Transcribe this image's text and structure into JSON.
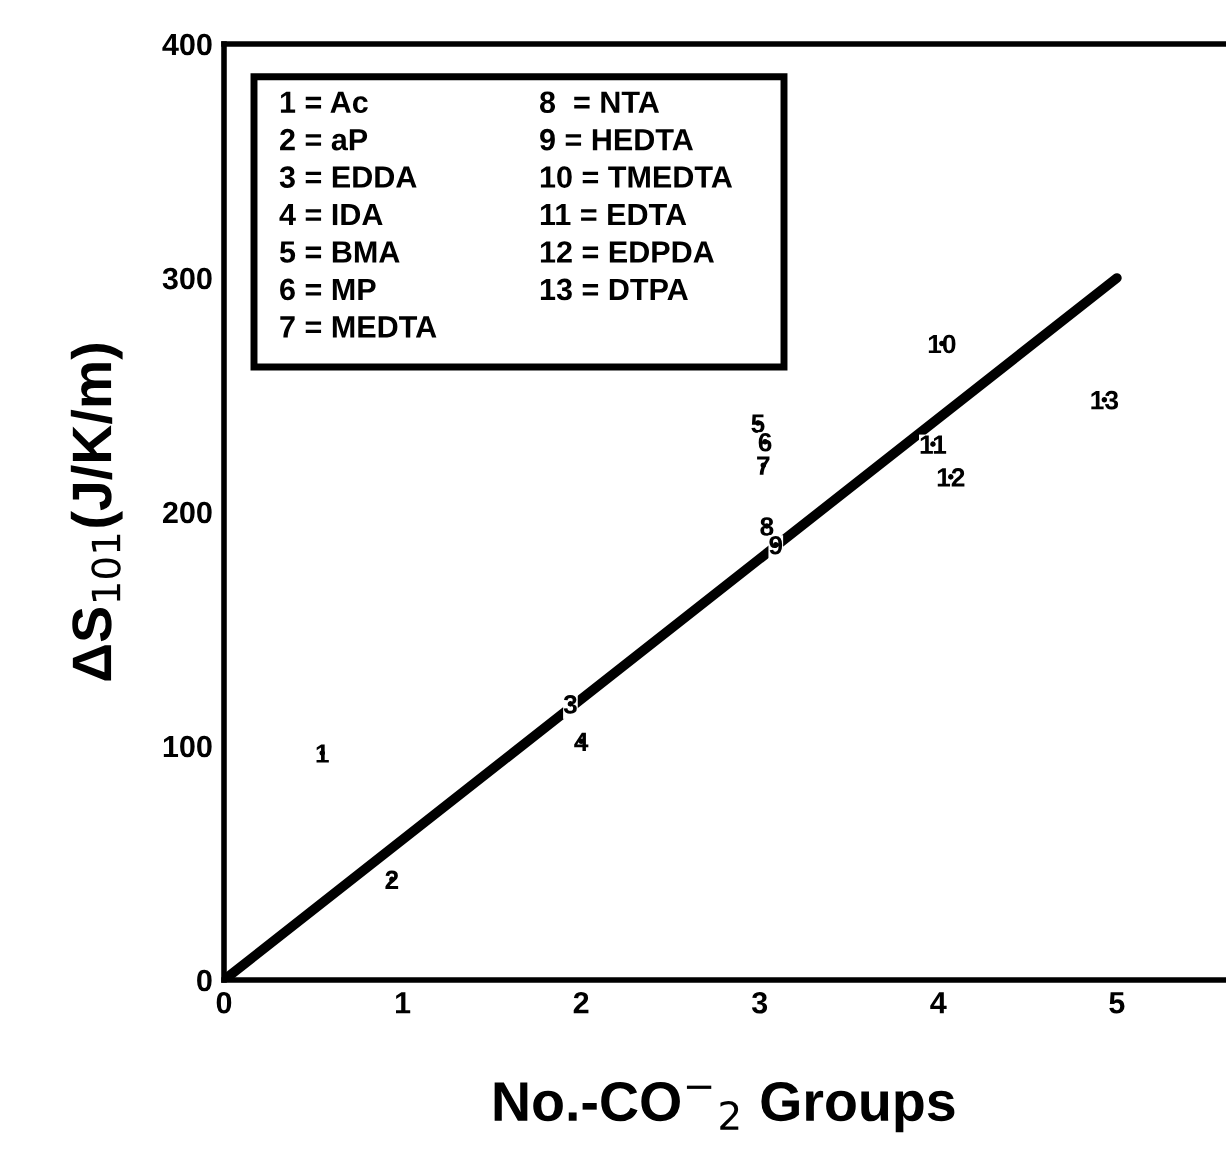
{
  "chart_data": {
    "type": "scatter",
    "xlabel": "No.-CO$^{−}$$_{2}$ Groups",
    "ylabel": "ΔS$_{101}$(J/K/m)",
    "xlim": [
      0,
      5.6
    ],
    "ylim": [
      0,
      400
    ],
    "xticks": [
      0,
      1,
      2,
      3,
      4,
      5
    ],
    "yticks": [
      0,
      100,
      200,
      300,
      400
    ],
    "grid": false,
    "legend": false,
    "marker": "circle",
    "series": [
      {
        "name": "1",
        "color": "#000000",
        "x": [
          0.55
        ],
        "values": [
          97
        ]
      },
      {
        "name": "2",
        "color": "#000000",
        "x": [
          0.94
        ],
        "values": [
          43
        ]
      },
      {
        "name": "3",
        "color": "#000000",
        "x": [
          1.94
        ],
        "values": [
          118
        ]
      },
      {
        "name": "4",
        "color": "#000000",
        "x": [
          2.0
        ],
        "values": [
          102
        ]
      },
      {
        "name": "5",
        "color": "#000000",
        "x": [
          2.99
        ],
        "values": [
          238
        ]
      },
      {
        "name": "6",
        "color": "#000000",
        "x": [
          3.03
        ],
        "values": [
          230
        ]
      },
      {
        "name": "7",
        "color": "#000000",
        "x": [
          3.02
        ],
        "values": [
          220
        ]
      },
      {
        "name": "8",
        "color": "#000000",
        "x": [
          3.04
        ],
        "values": [
          194
        ]
      },
      {
        "name": "9",
        "color": "#000000",
        "x": [
          3.09
        ],
        "values": [
          186
        ]
      },
      {
        "name": "10",
        "color": "#000000",
        "x": [
          4.02
        ],
        "values": [
          272
        ]
      },
      {
        "name": "11",
        "color": "#000000",
        "x": [
          3.97
        ],
        "values": [
          229
        ]
      },
      {
        "name": "12",
        "color": "#000000",
        "x": [
          4.07
        ],
        "values": [
          215
        ]
      },
      {
        "name": "13",
        "color": "#000000",
        "x": [
          4.93
        ],
        "values": [
          248
        ]
      },
      {
        "type": "line",
        "color": "#000000",
        "line_style": "solid",
        "marker": "none",
        "x": [
          0,
          5
        ],
        "values": [
          0,
          300
        ]
      }
    ],
    "annotations": [
      "1 = Ac",
      "2 = aP",
      "3 = EDDA",
      "4 = IDA",
      "5 = BMA",
      "6 = MP",
      "7 = MEDTA",
      "8  = NTA",
      "9 = HEDTA",
      "10 = TMEDTA",
      "11 = EDTA",
      "12 = EDPDA",
      "13 = DTPA"
    ]
  }
}
